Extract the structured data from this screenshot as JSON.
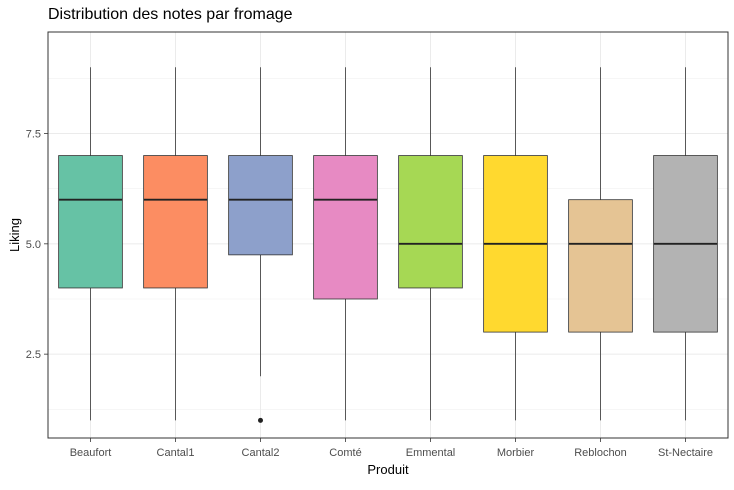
{
  "chart_data": {
    "type": "boxplot",
    "title": "Distribution des notes par fromage",
    "xlabel": "Produit",
    "ylabel": "Liking",
    "ylim": [
      0.6,
      9.8
    ],
    "yticks": [
      2.5,
      5.0,
      7.5
    ],
    "ytick_labels": [
      "2.5",
      "5.0",
      "7.5"
    ],
    "grid": true,
    "legend": "none",
    "categories": [
      "Beaufort",
      "Cantal1",
      "Cantal2",
      "Comté",
      "Emmental",
      "Morbier",
      "Reblochon",
      "St-Nectaire"
    ],
    "boxes": [
      {
        "name": "Beaufort",
        "min": 1,
        "q1": 4,
        "median": 6,
        "q3": 7,
        "max": 9,
        "outliers": [],
        "color": "#66C2A5"
      },
      {
        "name": "Cantal1",
        "min": 1,
        "q1": 4,
        "median": 6,
        "q3": 7,
        "max": 9,
        "outliers": [],
        "color": "#FC8D62"
      },
      {
        "name": "Cantal2",
        "min": 2,
        "q1": 4.75,
        "median": 6,
        "q3": 7,
        "max": 9,
        "outliers": [
          1
        ],
        "color": "#8DA0CB"
      },
      {
        "name": "Comté",
        "min": 1,
        "q1": 3.75,
        "median": 6,
        "q3": 7,
        "max": 9,
        "outliers": [],
        "color": "#E78AC3"
      },
      {
        "name": "Emmental",
        "min": 1,
        "q1": 4,
        "median": 5,
        "q3": 7,
        "max": 9,
        "outliers": [],
        "color": "#A6D854"
      },
      {
        "name": "Morbier",
        "min": 1,
        "q1": 3,
        "median": 5,
        "q3": 7,
        "max": 9,
        "outliers": [],
        "color": "#FFD92F"
      },
      {
        "name": "Reblochon",
        "min": 1,
        "q1": 3,
        "median": 5,
        "q3": 6,
        "max": 9,
        "outliers": [],
        "color": "#E5C494"
      },
      {
        "name": "St-Nectaire",
        "min": 1,
        "q1": 3,
        "median": 5,
        "q3": 7,
        "max": 9,
        "outliers": [],
        "color": "#B3B3B3"
      }
    ]
  }
}
